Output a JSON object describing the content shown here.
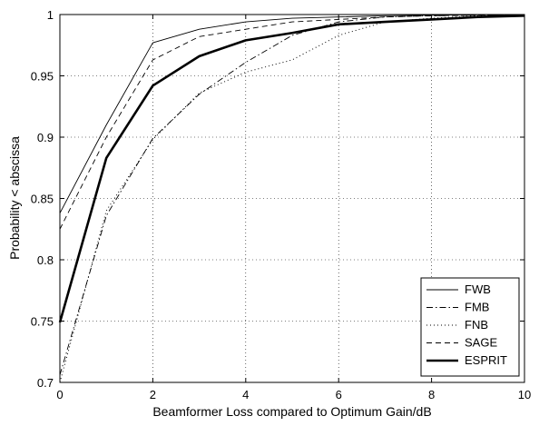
{
  "chart_data": {
    "type": "line",
    "title": "",
    "xlabel": "Beamformer Loss compared to Optimum Gain/dB",
    "ylabel": "Probability < abscissa",
    "xlim": [
      0,
      10
    ],
    "ylim": [
      0.7,
      1.0
    ],
    "xticks": [
      0,
      2,
      4,
      6,
      8,
      10
    ],
    "yticks": [
      0.7,
      0.75,
      0.8,
      0.85,
      0.9,
      0.95,
      1.0
    ],
    "xtick_labels": [
      "0",
      "2",
      "4",
      "6",
      "8",
      "10"
    ],
    "ytick_labels": [
      "0.7",
      "0.75",
      "0.8",
      "0.85",
      "0.9",
      "0.95",
      "1"
    ],
    "grid": true,
    "legend_position": "bottom-right",
    "x": [
      0,
      1,
      2,
      3,
      4,
      5,
      6,
      7,
      8,
      9,
      10
    ],
    "series": [
      {
        "name": "FWB",
        "style": "solid-thin",
        "values": [
          0.838,
          0.91,
          0.977,
          0.988,
          0.994,
          0.997,
          0.998,
          0.999,
          0.9995,
          0.9998,
          1.0
        ]
      },
      {
        "name": "FMB",
        "style": "dashdot",
        "values": [
          0.706,
          0.836,
          0.899,
          0.935,
          0.961,
          0.983,
          0.994,
          0.998,
          0.999,
          0.9995,
          0.9998
        ]
      },
      {
        "name": "FNB",
        "style": "dotted",
        "values": [
          0.7,
          0.84,
          0.898,
          0.936,
          0.953,
          0.963,
          0.983,
          0.994,
          0.997,
          0.999,
          0.9995
        ]
      },
      {
        "name": "SAGE",
        "style": "dashed",
        "values": [
          0.825,
          0.9,
          0.963,
          0.982,
          0.988,
          0.994,
          0.996,
          0.998,
          0.999,
          0.9995,
          0.9998
        ]
      },
      {
        "name": "ESPRIT",
        "style": "solid-thick",
        "values": [
          0.749,
          0.883,
          0.942,
          0.966,
          0.979,
          0.985,
          0.992,
          0.994,
          0.996,
          0.998,
          0.999
        ]
      }
    ]
  }
}
